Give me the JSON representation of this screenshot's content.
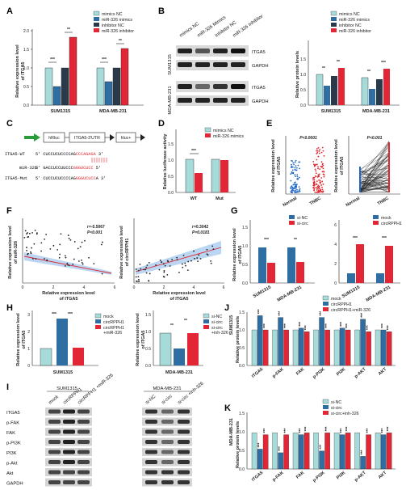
{
  "panel_letters": [
    "A",
    "B",
    "C",
    "D",
    "E",
    "F",
    "G",
    "H",
    "I",
    "J",
    "K"
  ],
  "colors": {
    "mimics_nc": "#a6dbd9",
    "mir326_mimics": "#2e6ea3",
    "inhibitor_nc": "#2b3a4a",
    "mir326_inhibitor": "#e32636",
    "blue_dots": "#1f66c6",
    "red_dots": "#e0262f"
  },
  "panelA": {
    "ylabel_1": "Relative expression level",
    "ylabel_2": "of ITGA5",
    "legend": [
      "mimics NC",
      "miR-326 mimics",
      "inhibitor NC",
      "miR-326 inhibitor"
    ],
    "cats": [
      "SUM1315",
      "MDA-MB-231"
    ],
    "sig": [
      "***",
      "**",
      "***",
      "**"
    ]
  },
  "panelB": {
    "lane_labels": [
      "mimics NC",
      "miR-326 Mimics",
      "Inhibitor NC",
      "miR-326 Inhibitor"
    ],
    "cell1": "SUM1315",
    "cell2": "MDA-MB-231",
    "blot_labels": [
      "ITGA5",
      "GAPDH",
      "ITGA5",
      "GAPDH"
    ],
    "ylabel": "Relative protein levels",
    "legend": [
      "mimics NC",
      "miR-326 mimics",
      "inhibitor NC",
      "miR-326 inhibitor"
    ],
    "cats": [
      "SUM1315",
      "MDA-MB-231"
    ],
    "sig": [
      "**",
      "**",
      "**",
      "***"
    ]
  },
  "panelC": {
    "box1": "hRluc",
    "box2": "ITGA5-3'UTR",
    "box3": "hluc+",
    "wt_label": "ITGA5-WT",
    "wt_prefix": "5' CUCCUCUCCCCAG",
    "wt_red": "CCCAGAGA",
    "wt_end": " 3'",
    "mir_label": "miR-326",
    "mir_prefix": "3' GACCUCCUUCCC",
    "mir_red": "GGGUCUCC",
    "mir_end": " 5'",
    "mut_label": "ITGA5-Mut",
    "mut_prefix": "5' CUCCUCUCCCCAG",
    "mut_red": "GGGUCUCC",
    "mut_end": "A 3'"
  },
  "panelD": {
    "ylabel": "Relative luciferase activity",
    "legend": [
      "mimics NC",
      "miR-326 mimics"
    ],
    "cats": [
      "WT",
      "Mut"
    ],
    "sig": [
      "***"
    ]
  },
  "panelE": {
    "ylabel_1": "Relative expression level",
    "ylabel_2": "of ITGA5",
    "p1": "P<0.0001",
    "p2": "P<0.001",
    "cats": [
      "Normal",
      "TNBC"
    ]
  },
  "panelF": {
    "ylabel1_1": "Relative expression level",
    "ylabel1_2": "of miR-326",
    "ylabel2_1": "Relative expression level",
    "ylabel2_2": "of circRPPH1",
    "xlabel_1": "Relative expression level",
    "xlabel_2": "of ITGA5",
    "r1": "r=-0.5067",
    "p1": "P<0.001",
    "r2": "r=0.3042",
    "p2": "P=0.0181"
  },
  "panelG": {
    "ylabel_1": "Relative expression level",
    "ylabel_2": "of ITGA5",
    "legend1": [
      "si-NC",
      "si-circ"
    ],
    "legend2": [
      "mock",
      "circRPPH1"
    ],
    "cats": [
      "SUM1315",
      "MDA-MB-231"
    ],
    "sig": [
      "***",
      "**",
      "***",
      "***"
    ]
  },
  "panelH": {
    "ylabel_1": "Relative expression level",
    "ylabel_2": "of ITGA5",
    "legend1": [
      "mock",
      "circRPPH1",
      "circRPPH1",
      "+miR-326"
    ],
    "legend2": [
      "si-NC",
      "si-circ",
      "si-circ",
      "+inh-326"
    ],
    "cat1": "SUM1315",
    "cat2": "MDA-MB-231",
    "sig": [
      "***",
      "***",
      "**",
      "**"
    ]
  },
  "panelI": {
    "cell1": "SUM1315",
    "cell2": "MDA-MB-231",
    "lanes1": [
      "mock",
      "circRPPH1",
      "circRPPH1 +miR-326"
    ],
    "lanes2": [
      "si-NC",
      "si-circ",
      "si-circ +inh-326"
    ],
    "rows": [
      "ITGA5",
      "p-FAK",
      "FAK",
      "p-PI3K",
      "PI3K",
      "p-Akt",
      "Akt",
      "GAPDH"
    ]
  },
  "panelJ": {
    "ylabel_cell": "SUM1315",
    "ylabel": "Relative protein levels",
    "legend": [
      "mock",
      "circRPPH1",
      "circRPPH1+miR-326"
    ],
    "cats": [
      "ITGA5",
      "p-FAK",
      "FAK",
      "p-PI3K",
      "PI3K",
      "p-AKT",
      "AKT"
    ]
  },
  "panelK": {
    "ylabel_cell": "MDA-MB-231",
    "ylabel": "Relative protein levels",
    "legend": [
      "si-NC",
      "si-circ",
      "si-circ+inh-326"
    ],
    "cats": [
      "ITGA5",
      "p-FAK",
      "FAK",
      "p-PI3K",
      "PI3K",
      "p-AKT",
      "AKT"
    ]
  }
}
